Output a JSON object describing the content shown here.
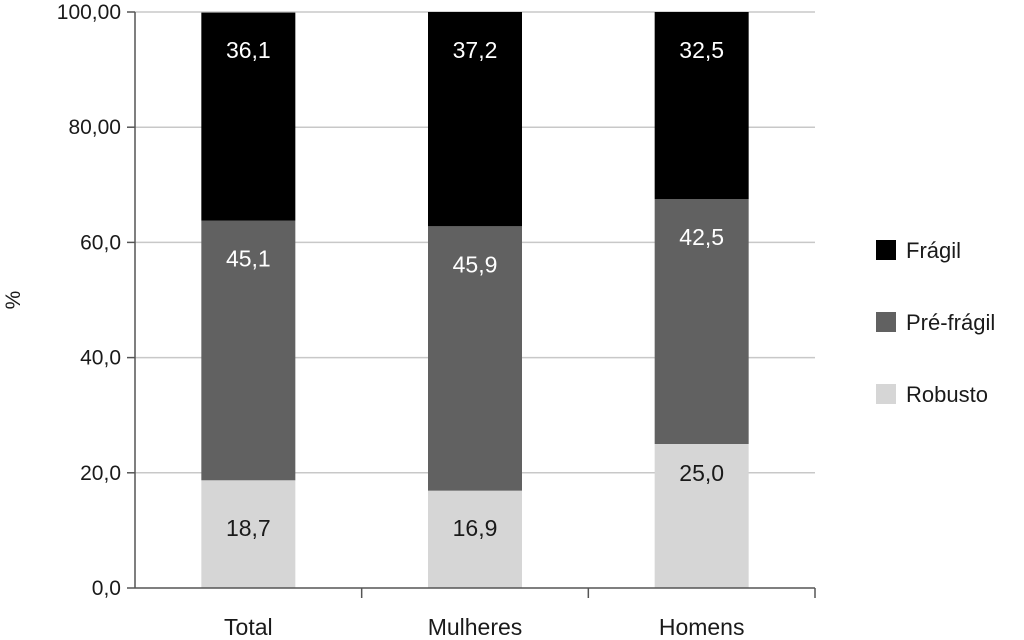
{
  "chart_data": {
    "type": "bar",
    "stacked": true,
    "title": "",
    "xlabel": "",
    "ylabel": "%",
    "ylim": [
      0,
      100
    ],
    "y_ticks": [
      "0,0",
      "20,0",
      "40,0",
      "60,0",
      "80,00",
      "100,00"
    ],
    "y_tick_values": [
      0,
      20,
      40,
      60,
      80,
      100
    ],
    "grid": true,
    "legend_position": "right",
    "categories": [
      "Total",
      "Mulheres",
      "Homens"
    ],
    "series": [
      {
        "name": "Robusto",
        "values": [
          18.7,
          16.9,
          25.0
        ],
        "labels": [
          "18,7",
          "16,9",
          "25,0"
        ],
        "color": "#d6d6d6",
        "label_color": "#1a1a1a"
      },
      {
        "name": "Pré-frágil",
        "values": [
          45.1,
          45.9,
          42.5
        ],
        "labels": [
          "45,1",
          "45,9",
          "42,5"
        ],
        "color": "#616161",
        "label_color": "#ffffff"
      },
      {
        "name": "Frágil",
        "values": [
          36.1,
          37.2,
          32.5
        ],
        "labels": [
          "36,1",
          "37,2",
          "32,5"
        ],
        "color": "#000000",
        "label_color": "#ffffff"
      }
    ],
    "legend_order": [
      "Frágil",
      "Pré-frágil",
      "Robusto"
    ]
  }
}
